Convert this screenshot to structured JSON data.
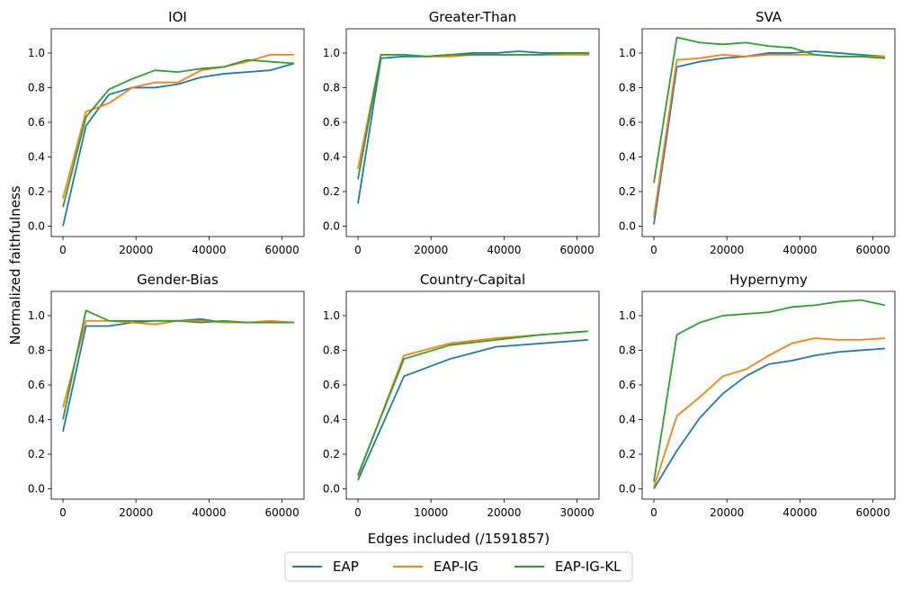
{
  "figure": {
    "ylabel": "Normalized faithfulness",
    "xlabel": "Edges included (/1591857)"
  },
  "legend": {
    "position": "bottom-center",
    "items": [
      {
        "label": "EAP",
        "color": "#1f77b4"
      },
      {
        "label": "EAP-IG",
        "color": "#ff7f0e"
      },
      {
        "label": "EAP-IG-KL",
        "color": "#2ca02c"
      }
    ]
  },
  "chart_data": [
    {
      "type": "line",
      "title": "IOI",
      "xlim": [
        -3200,
        66000
      ],
      "ylim": [
        -0.06,
        1.14
      ],
      "xticks": [
        0,
        20000,
        40000,
        60000
      ],
      "yticks": [
        0.0,
        0.2,
        0.4,
        0.6,
        0.8,
        1.0
      ],
      "x": [
        0,
        6300,
        12600,
        18900,
        25200,
        31500,
        37800,
        44100,
        50400,
        56700,
        63300
      ],
      "series": [
        {
          "name": "EAP",
          "color": "#1f77b4",
          "values": [
            0.0,
            0.58,
            0.76,
            0.8,
            0.8,
            0.82,
            0.86,
            0.88,
            0.89,
            0.9,
            0.94
          ]
        },
        {
          "name": "EAP-IG",
          "color": "#ff7f0e",
          "values": [
            0.16,
            0.66,
            0.71,
            0.8,
            0.83,
            0.83,
            0.9,
            0.92,
            0.95,
            0.99,
            0.99
          ]
        },
        {
          "name": "EAP-IG-KL",
          "color": "#2ca02c",
          "values": [
            0.11,
            0.63,
            0.79,
            0.85,
            0.9,
            0.89,
            0.91,
            0.92,
            0.96,
            0.95,
            0.94
          ]
        }
      ]
    },
    {
      "type": "line",
      "title": "Greater-Than",
      "xlim": [
        -3200,
        66000
      ],
      "ylim": [
        -0.06,
        1.14
      ],
      "xticks": [
        0,
        20000,
        40000,
        60000
      ],
      "yticks": [
        0.0,
        0.2,
        0.4,
        0.6,
        0.8,
        1.0
      ],
      "x": [
        0,
        6300,
        12600,
        18900,
        25200,
        31500,
        37800,
        44100,
        50400,
        56700,
        63300
      ],
      "series": [
        {
          "name": "EAP",
          "color": "#1f77b4",
          "values": [
            0.13,
            0.97,
            0.98,
            0.98,
            0.99,
            1.0,
            1.0,
            1.01,
            1.0,
            1.0,
            1.0
          ]
        },
        {
          "name": "EAP-IG",
          "color": "#ff7f0e",
          "values": [
            0.33,
            0.99,
            0.99,
            0.98,
            0.98,
            0.99,
            0.99,
            0.99,
            0.99,
            0.99,
            0.99
          ]
        },
        {
          "name": "EAP-IG-KL",
          "color": "#2ca02c",
          "values": [
            0.27,
            0.99,
            0.99,
            0.98,
            0.99,
            0.99,
            0.99,
            0.99,
            0.99,
            1.0,
            1.0
          ]
        }
      ]
    },
    {
      "type": "line",
      "title": "SVA",
      "xlim": [
        -3200,
        66000
      ],
      "ylim": [
        -0.06,
        1.14
      ],
      "xticks": [
        0,
        20000,
        40000,
        60000
      ],
      "yticks": [
        0.0,
        0.2,
        0.4,
        0.6,
        0.8,
        1.0
      ],
      "x": [
        0,
        6300,
        12600,
        18900,
        25200,
        31500,
        37800,
        44100,
        50400,
        56700,
        63300
      ],
      "series": [
        {
          "name": "EAP",
          "color": "#1f77b4",
          "values": [
            0.01,
            0.92,
            0.95,
            0.97,
            0.98,
            1.0,
            1.0,
            1.01,
            1.0,
            0.99,
            0.98
          ]
        },
        {
          "name": "EAP-IG",
          "color": "#ff7f0e",
          "values": [
            0.05,
            0.96,
            0.97,
            0.99,
            0.98,
            0.99,
            0.99,
            0.99,
            0.98,
            0.98,
            0.98
          ]
        },
        {
          "name": "EAP-IG-KL",
          "color": "#2ca02c",
          "values": [
            0.25,
            1.09,
            1.06,
            1.05,
            1.06,
            1.04,
            1.03,
            0.99,
            0.98,
            0.98,
            0.97
          ]
        }
      ]
    },
    {
      "type": "line",
      "title": "Gender-Bias",
      "xlim": [
        -3200,
        66000
      ],
      "ylim": [
        -0.06,
        1.14
      ],
      "xticks": [
        0,
        20000,
        40000,
        60000
      ],
      "yticks": [
        0.0,
        0.2,
        0.4,
        0.6,
        0.8,
        1.0
      ],
      "x": [
        0,
        6300,
        12600,
        18900,
        25200,
        31500,
        37800,
        44100,
        50400,
        56700,
        63300
      ],
      "series": [
        {
          "name": "EAP",
          "color": "#1f77b4",
          "values": [
            0.33,
            0.94,
            0.94,
            0.96,
            0.97,
            0.97,
            0.98,
            0.96,
            0.96,
            0.96,
            0.96
          ]
        },
        {
          "name": "EAP-IG",
          "color": "#ff7f0e",
          "values": [
            0.47,
            0.97,
            0.97,
            0.96,
            0.95,
            0.97,
            0.97,
            0.96,
            0.96,
            0.97,
            0.96
          ]
        },
        {
          "name": "EAP-IG-KL",
          "color": "#2ca02c",
          "values": [
            0.4,
            1.03,
            0.97,
            0.97,
            0.97,
            0.97,
            0.96,
            0.97,
            0.96,
            0.96,
            0.96
          ]
        }
      ]
    },
    {
      "type": "line",
      "title": "Country-Capital",
      "xlim": [
        -1600,
        33000
      ],
      "ylim": [
        -0.06,
        1.14
      ],
      "xticks": [
        0,
        10000,
        20000,
        30000
      ],
      "yticks": [
        0.0,
        0.2,
        0.4,
        0.6,
        0.8,
        1.0
      ],
      "x": [
        0,
        6300,
        12600,
        18900,
        25200,
        31500
      ],
      "series": [
        {
          "name": "EAP",
          "color": "#1f77b4",
          "values": [
            0.05,
            0.65,
            0.75,
            0.82,
            0.84,
            0.86
          ]
        },
        {
          "name": "EAP-IG",
          "color": "#ff7f0e",
          "values": [
            0.07,
            0.77,
            0.84,
            0.87,
            0.89,
            0.91
          ]
        },
        {
          "name": "EAP-IG-KL",
          "color": "#2ca02c",
          "values": [
            0.08,
            0.75,
            0.83,
            0.86,
            0.89,
            0.91
          ]
        }
      ]
    },
    {
      "type": "line",
      "title": "Hypernymy",
      "xlim": [
        -3200,
        66000
      ],
      "ylim": [
        -0.06,
        1.14
      ],
      "xticks": [
        0,
        20000,
        40000,
        60000
      ],
      "yticks": [
        0.0,
        0.2,
        0.4,
        0.6,
        0.8,
        1.0
      ],
      "x": [
        0,
        6300,
        12600,
        18900,
        25200,
        31500,
        37800,
        44100,
        50400,
        56700,
        63300
      ],
      "series": [
        {
          "name": "EAP",
          "color": "#1f77b4",
          "values": [
            0.0,
            0.22,
            0.41,
            0.55,
            0.65,
            0.72,
            0.74,
            0.77,
            0.79,
            0.8,
            0.81
          ]
        },
        {
          "name": "EAP-IG",
          "color": "#ff7f0e",
          "values": [
            0.01,
            0.42,
            0.53,
            0.65,
            0.69,
            0.77,
            0.84,
            0.87,
            0.86,
            0.86,
            0.87
          ]
        },
        {
          "name": "EAP-IG-KL",
          "color": "#2ca02c",
          "values": [
            0.04,
            0.89,
            0.96,
            1.0,
            1.01,
            1.02,
            1.05,
            1.06,
            1.08,
            1.09,
            1.06
          ]
        }
      ]
    }
  ]
}
